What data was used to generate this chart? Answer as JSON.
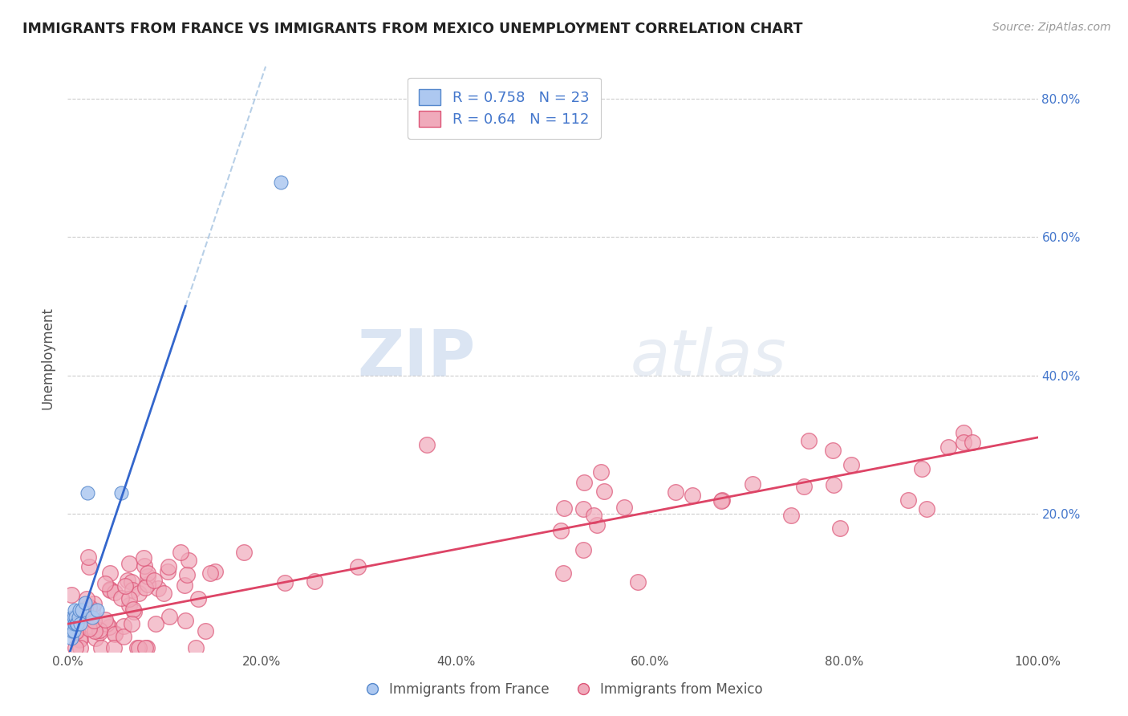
{
  "title": "IMMIGRANTS FROM FRANCE VS IMMIGRANTS FROM MEXICO UNEMPLOYMENT CORRELATION CHART",
  "source": "Source: ZipAtlas.com",
  "ylabel": "Unemployment",
  "xlim": [
    0,
    1.0
  ],
  "ylim": [
    0,
    0.85
  ],
  "ytick_positions": [
    0.2,
    0.4,
    0.6,
    0.8
  ],
  "ytick_labels": [
    "20.0%",
    "40.0%",
    "60.0%",
    "80.0%"
  ],
  "xtick_positions": [
    0.0,
    0.2,
    0.4,
    0.6,
    0.8,
    1.0
  ],
  "xtick_labels": [
    "0.0%",
    "20.0%",
    "40.0%",
    "60.0%",
    "80.0%",
    "100.0%"
  ],
  "france_color": "#adc8f0",
  "france_edge_color": "#5588cc",
  "mexico_color": "#f0aabb",
  "mexico_edge_color": "#dd5577",
  "france_line_color": "#3366cc",
  "mexico_line_color": "#dd4466",
  "france_R": 0.758,
  "france_N": 23,
  "mexico_R": 0.64,
  "mexico_N": 112,
  "france_line_slope": 4.2,
  "france_line_intercept": -0.01,
  "mexico_line_slope": 0.27,
  "mexico_line_intercept": 0.04,
  "watermark_zip": "ZIP",
  "watermark_atlas": "atlas",
  "background_color": "#ffffff",
  "grid_color": "#cccccc",
  "tick_color": "#4477cc"
}
